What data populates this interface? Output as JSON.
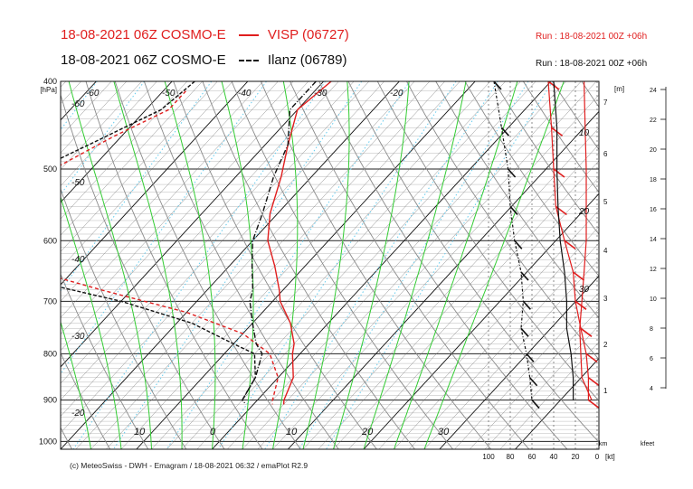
{
  "header": {
    "line1_left": "18-08-2021 06Z COSMO-E",
    "line1_station": "VISP (06727)",
    "line1_run": "Run : 18-08-2021 00Z +06h",
    "line2_left": "18-08-2021 06Z COSMO-E",
    "line2_station": "Ilanz (06789)",
    "line2_run": "Run : 18-08-2021 00Z +06h"
  },
  "footer": "(c) MeteoSwiss - DWH - Emagram / 18-08-2021 06:32 / emaPlot R2.9",
  "colors": {
    "visp": "#e01e1e",
    "ilanz": "#111111",
    "dry_adiabat": "#8a8a8a",
    "moist_adiabat": "#33cc33",
    "mixing_ratio": "#66ccee",
    "isotherm": "#111111"
  },
  "chart_data": {
    "type": "emagram",
    "y_axis": {
      "label": "[hPa]",
      "scale": "log-pressure",
      "ticks": [
        "400",
        "500",
        "600",
        "700",
        "800",
        "900",
        "1000"
      ],
      "range": [
        400,
        1020
      ]
    },
    "x_axis": {
      "range": [
        -10,
        30
      ],
      "skewed_temperature_labels": [
        "-60",
        "-50",
        "-40",
        "-30",
        "-20",
        "10",
        "0",
        "10",
        "20",
        "30"
      ],
      "low_labels": [
        "-60",
        "-50",
        "-40",
        "-30",
        "-20"
      ],
      "diag_labels": [
        "10",
        "0",
        "10",
        "20",
        "30"
      ],
      "top_labels": [
        "-60",
        "-50",
        "-40",
        "-30",
        "-20"
      ]
    },
    "height_axis": {
      "label": "[m]",
      "ticks": [
        "7",
        "6",
        "5",
        "4",
        "3",
        "2",
        "1"
      ]
    },
    "feet_axis": {
      "label": "kfeet",
      "ticks": [
        "24",
        "22",
        "20",
        "18",
        "16",
        "14",
        "12",
        "10",
        "8",
        "6",
        "4"
      ]
    },
    "wind_axis": {
      "label": "[kt]",
      "km_label": "km",
      "ticks": [
        "100",
        "80",
        "60",
        "40",
        "20",
        "0"
      ]
    },
    "wind_speed_labels": [
      "10",
      "20",
      "30"
    ],
    "series": [
      {
        "name": "VISP (06727)",
        "temperature": [
          [
            400,
            -19
          ],
          [
            430,
            -20
          ],
          [
            470,
            -17
          ],
          [
            510,
            -14
          ],
          [
            560,
            -11
          ],
          [
            600,
            -8
          ],
          [
            640,
            -4
          ],
          [
            680,
            -0.5
          ],
          [
            700,
            1
          ],
          [
            740,
            5
          ],
          [
            780,
            8
          ],
          [
            800,
            9
          ],
          [
            850,
            12
          ],
          [
            900,
            13.5
          ],
          [
            910,
            14
          ]
        ],
        "dewpoint": [
          [
            410,
            -37
          ],
          [
            430,
            -37
          ],
          [
            460,
            -41
          ],
          [
            500,
            -45
          ],
          [
            540,
            -50
          ],
          [
            570,
            -52
          ],
          [
            600,
            -48
          ],
          [
            640,
            -38
          ],
          [
            680,
            -24
          ],
          [
            720,
            -10
          ],
          [
            760,
            0
          ],
          [
            800,
            6
          ],
          [
            850,
            10
          ],
          [
            900,
            12
          ],
          [
            910,
            12.5
          ]
        ],
        "wind_speed_kt": [
          [
            400,
            45
          ],
          [
            450,
            42
          ],
          [
            500,
            40
          ],
          [
            550,
            38
          ],
          [
            600,
            30
          ],
          [
            650,
            22
          ],
          [
            700,
            20
          ],
          [
            750,
            15
          ],
          [
            800,
            10
          ],
          [
            850,
            8
          ],
          [
            900,
            8
          ]
        ],
        "wind_line_kt": [
          [
            400,
            12
          ],
          [
            450,
            11
          ],
          [
            500,
            10
          ],
          [
            550,
            10
          ],
          [
            600,
            10
          ],
          [
            650,
            12
          ],
          [
            700,
            14
          ],
          [
            750,
            16
          ],
          [
            800,
            15
          ],
          [
            850,
            14
          ],
          [
            900,
            5
          ]
        ]
      },
      {
        "name": "Ilanz (06789)",
        "temperature": [
          [
            400,
            -21
          ],
          [
            430,
            -21
          ],
          [
            470,
            -17
          ],
          [
            510,
            -15
          ],
          [
            560,
            -12
          ],
          [
            600,
            -10
          ],
          [
            640,
            -7
          ],
          [
            680,
            -4
          ],
          [
            700,
            -3
          ],
          [
            740,
            0
          ],
          [
            780,
            3
          ],
          [
            800,
            5
          ],
          [
            850,
            7
          ],
          [
            900,
            8
          ],
          [
            910,
            9
          ]
        ],
        "dewpoint": [
          [
            400,
            -37
          ],
          [
            430,
            -38
          ],
          [
            460,
            -42
          ],
          [
            500,
            -47
          ],
          [
            540,
            -53
          ],
          [
            570,
            -58
          ],
          [
            600,
            -60
          ],
          [
            620,
            -52
          ],
          [
            660,
            -36
          ],
          [
            700,
            -20
          ],
          [
            740,
            -8
          ],
          [
            780,
            0
          ],
          [
            800,
            4
          ],
          [
            850,
            7
          ],
          [
            900,
            8
          ]
        ],
        "wind_speed_kt": [
          [
            400,
            95
          ],
          [
            450,
            88
          ],
          [
            500,
            82
          ],
          [
            550,
            80
          ],
          [
            600,
            76
          ],
          [
            650,
            70
          ],
          [
            700,
            68
          ],
          [
            750,
            70
          ],
          [
            800,
            65
          ],
          [
            850,
            62
          ],
          [
            900,
            60
          ]
        ],
        "wind_line_kt": [
          [
            400,
            40
          ],
          [
            450,
            37
          ],
          [
            500,
            37
          ],
          [
            550,
            36
          ],
          [
            600,
            34
          ],
          [
            650,
            30
          ],
          [
            700,
            28
          ],
          [
            750,
            28
          ],
          [
            800,
            24
          ],
          [
            850,
            22
          ],
          [
            900,
            22
          ]
        ]
      }
    ]
  }
}
